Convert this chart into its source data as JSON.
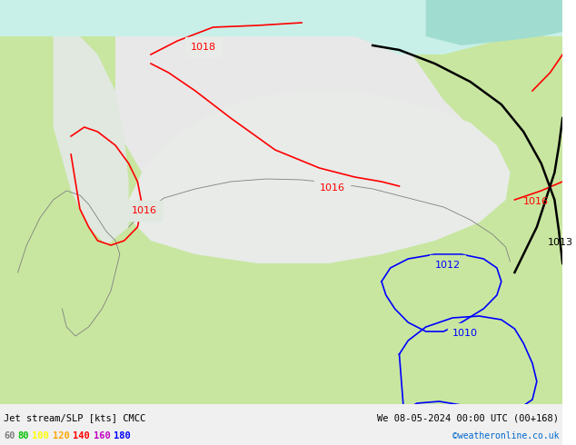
{
  "title_left": "Jet stream/SLP [kts] CMCC",
  "title_right": "We 08-05-2024 00:00 UTC (00+168)",
  "copyright": "©weatheronline.co.uk",
  "legend_values": [
    "60",
    "80",
    "100",
    "120",
    "140",
    "160",
    "180"
  ],
  "legend_colors": [
    "#808080",
    "#00c000",
    "#ffff00",
    "#ffa500",
    "#ff0000",
    "#c000c0",
    "#0000ff"
  ],
  "bg_color": "#ffffff",
  "map_bg_light_green": "#c8e6a0",
  "map_bg_white": "#f0f0f0",
  "map_bg_light_cyan": "#c8f0e8",
  "coast_color": "#808080",
  "isobar_red_color": "#ff0000",
  "isobar_black_color": "#000000",
  "isobar_blue_color": "#0000ff",
  "label_1018": "1018",
  "label_1016_left": "1016",
  "label_1016_mid": "1016",
  "label_1016_right": "1016",
  "label_1013": "1013",
  "label_1012": "1012",
  "label_1010": "1010",
  "bottom_bar_color": "#e8e8e8"
}
